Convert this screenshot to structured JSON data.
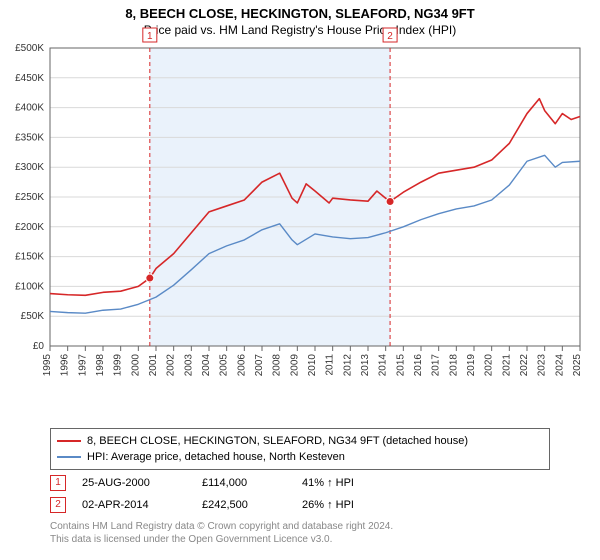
{
  "title": "8, BEECH CLOSE, HECKINGTON, SLEAFORD, NG34 9FT",
  "subtitle": "Price paid vs. HM Land Registry's House Price Index (HPI)",
  "chart": {
    "type": "line",
    "background_color": "#ffffff",
    "plot_border_color": "#666666",
    "grid_color": "#d9d9d9",
    "currency_prefix": "£",
    "ylim": [
      0,
      500000
    ],
    "ytick_step": 50000,
    "yticks": [
      "£0",
      "£50K",
      "£100K",
      "£150K",
      "£200K",
      "£250K",
      "£300K",
      "£350K",
      "£400K",
      "£450K",
      "£500K"
    ],
    "tick_fontsize": 10,
    "x_start_year": 1995,
    "x_end_year": 2025,
    "xticks": [
      "1995",
      "1996",
      "1997",
      "1998",
      "1999",
      "2000",
      "2001",
      "2002",
      "2003",
      "2004",
      "2005",
      "2006",
      "2007",
      "2008",
      "2009",
      "2010",
      "2011",
      "2012",
      "2013",
      "2014",
      "2015",
      "2016",
      "2017",
      "2018",
      "2019",
      "2020",
      "2021",
      "2022",
      "2023",
      "2024",
      "2025"
    ],
    "shaded_band": {
      "start_year": 2000.65,
      "end_year": 2014.25,
      "color": "#eaf2fb"
    },
    "marker_lines": [
      {
        "year": 2000.65,
        "dash": "4,3",
        "color": "#d62728",
        "label": "1"
      },
      {
        "year": 2014.25,
        "dash": "4,3",
        "color": "#d62728",
        "label": "2"
      }
    ],
    "series": [
      {
        "name": "price_paid",
        "label": "8, BEECH CLOSE, HECKINGTON, SLEAFORD, NG34 9FT (detached house)",
        "color": "#d62728",
        "line_width": 1.6,
        "points": [
          [
            1995,
            88000
          ],
          [
            1996,
            86000
          ],
          [
            1997,
            85000
          ],
          [
            1998,
            90000
          ],
          [
            1999,
            92000
          ],
          [
            2000,
            100000
          ],
          [
            2000.65,
            114000
          ],
          [
            2001,
            130000
          ],
          [
            2002,
            155000
          ],
          [
            2003,
            190000
          ],
          [
            2004,
            225000
          ],
          [
            2005,
            235000
          ],
          [
            2006,
            245000
          ],
          [
            2007,
            275000
          ],
          [
            2008,
            290000
          ],
          [
            2008.7,
            248000
          ],
          [
            2009,
            240000
          ],
          [
            2009.5,
            272000
          ],
          [
            2010,
            260000
          ],
          [
            2010.8,
            240000
          ],
          [
            2011,
            248000
          ],
          [
            2012,
            245000
          ],
          [
            2013,
            243000
          ],
          [
            2013.5,
            260000
          ],
          [
            2014,
            248000
          ],
          [
            2014.25,
            242500
          ],
          [
            2015,
            258000
          ],
          [
            2016,
            275000
          ],
          [
            2017,
            290000
          ],
          [
            2018,
            295000
          ],
          [
            2019,
            300000
          ],
          [
            2020,
            312000
          ],
          [
            2021,
            340000
          ],
          [
            2022,
            390000
          ],
          [
            2022.7,
            415000
          ],
          [
            2023,
            395000
          ],
          [
            2023.6,
            373000
          ],
          [
            2024,
            390000
          ],
          [
            2024.5,
            380000
          ],
          [
            2025,
            385000
          ]
        ],
        "markers": [
          {
            "year": 2000.65,
            "value": 114000
          },
          {
            "year": 2014.25,
            "value": 242500
          }
        ]
      },
      {
        "name": "hpi",
        "label": "HPI: Average price, detached house, North Kesteven",
        "color": "#5a8ac6",
        "line_width": 1.4,
        "points": [
          [
            1995,
            58000
          ],
          [
            1996,
            56000
          ],
          [
            1997,
            55000
          ],
          [
            1998,
            60000
          ],
          [
            1999,
            62000
          ],
          [
            2000,
            70000
          ],
          [
            2001,
            82000
          ],
          [
            2002,
            102000
          ],
          [
            2003,
            128000
          ],
          [
            2004,
            155000
          ],
          [
            2005,
            168000
          ],
          [
            2006,
            178000
          ],
          [
            2007,
            195000
          ],
          [
            2008,
            205000
          ],
          [
            2008.7,
            178000
          ],
          [
            2009,
            170000
          ],
          [
            2010,
            188000
          ],
          [
            2011,
            183000
          ],
          [
            2012,
            180000
          ],
          [
            2013,
            182000
          ],
          [
            2014,
            190000
          ],
          [
            2015,
            200000
          ],
          [
            2016,
            212000
          ],
          [
            2017,
            222000
          ],
          [
            2018,
            230000
          ],
          [
            2019,
            235000
          ],
          [
            2020,
            245000
          ],
          [
            2021,
            270000
          ],
          [
            2022,
            310000
          ],
          [
            2023,
            320000
          ],
          [
            2023.6,
            300000
          ],
          [
            2024,
            308000
          ],
          [
            2025,
            310000
          ]
        ]
      }
    ]
  },
  "legend": [
    {
      "color": "#d62728",
      "text": "8, BEECH CLOSE, HECKINGTON, SLEAFORD, NG34 9FT (detached house)"
    },
    {
      "color": "#5a8ac6",
      "text": "HPI: Average price, detached house, North Kesteven"
    }
  ],
  "sale_markers": [
    {
      "num": "1",
      "date": "25-AUG-2000",
      "price": "£114,000",
      "pct": "41% ↑ HPI"
    },
    {
      "num": "2",
      "date": "02-APR-2014",
      "price": "£242,500",
      "pct": "26% ↑ HPI"
    }
  ],
  "footer_line1": "Contains HM Land Registry data © Crown copyright and database right 2024.",
  "footer_line2": "This data is licensed under the Open Government Licence v3.0."
}
